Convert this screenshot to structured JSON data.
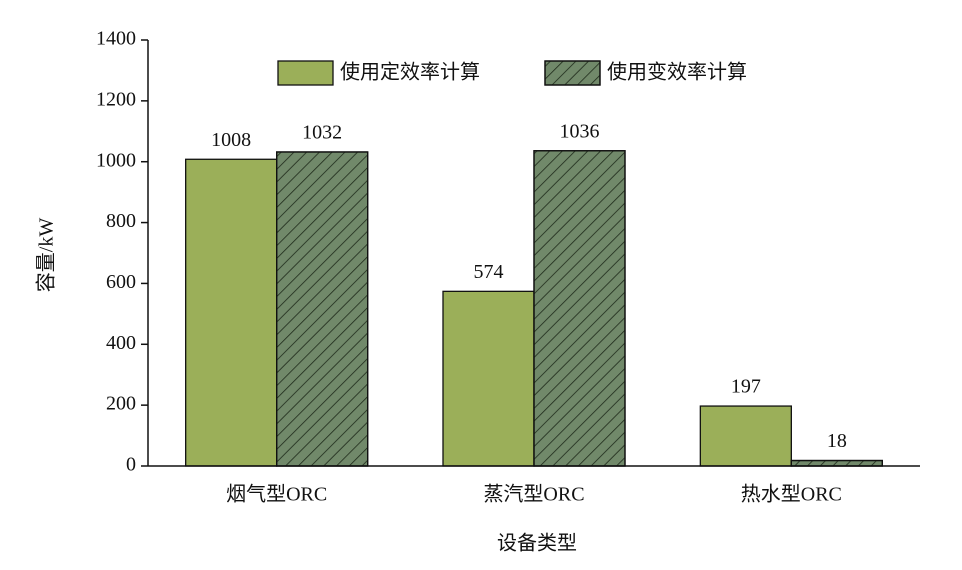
{
  "chart_data": {
    "type": "bar",
    "x_label": "设备类型",
    "y_label": "容量/kW",
    "categories": [
      "烟气型ORC",
      "蒸汽型ORC",
      "热水型ORC"
    ],
    "series": [
      {
        "name": "使用定效率计算",
        "color": "#9baf59",
        "hatch": false,
        "values": [
          1008,
          574,
          197
        ]
      },
      {
        "name": "使用变效率计算",
        "color": "#71896a",
        "hatch": true,
        "values": [
          1032,
          1036,
          18
        ]
      }
    ],
    "ylim": [
      0,
      1400
    ],
    "yticks": [
      0,
      200,
      400,
      600,
      800,
      1000,
      1200,
      1400
    ],
    "legend": "top",
    "grid": false
  }
}
